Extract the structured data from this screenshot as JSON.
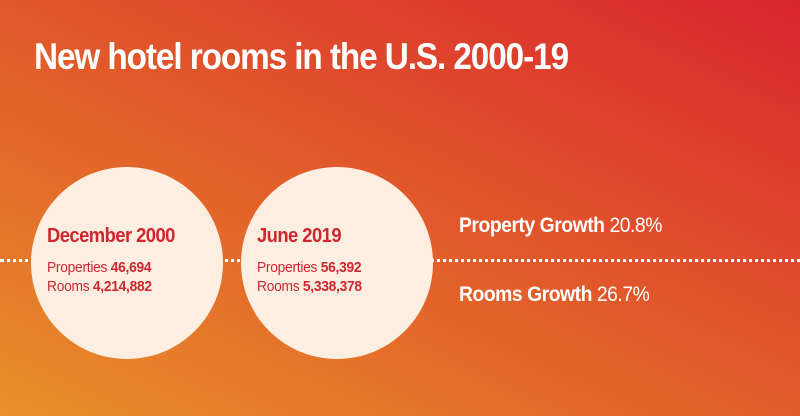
{
  "title": "New hotel rooms in the U.S. 2000-19",
  "snapshots": [
    {
      "period": "December 2000",
      "properties_label": "Properties",
      "properties_value": "46,694",
      "rooms_label": "Rooms",
      "rooms_value": "4,214,882"
    },
    {
      "period": "June 2019",
      "properties_label": "Properties",
      "properties_value": "56,392",
      "rooms_label": "Rooms",
      "rooms_value": "5,338,378"
    }
  ],
  "growth": {
    "property_label": "Property Growth",
    "property_value": "20.8%",
    "rooms_label": "Rooms Growth",
    "rooms_value": "26.7%"
  },
  "colors": {
    "accent_red": "#cf2630",
    "circle_fill": "#fcefe2",
    "text_white": "#ffffff"
  }
}
